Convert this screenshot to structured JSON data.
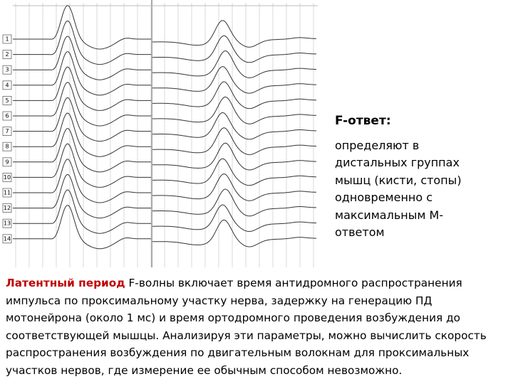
{
  "figure": {
    "trace_labels": [
      "1",
      "2",
      "3",
      "4",
      "5",
      "6",
      "7",
      "8",
      "9",
      "10",
      "11",
      "12",
      "13",
      "14"
    ]
  },
  "aside": {
    "title": "F-ответ:",
    "lines": [
      "определяют в",
      "дистальных группах",
      "мышц (кисти, стопы)",
      "одновременно с",
      "максимальным М-",
      "ответом"
    ]
  },
  "paragraph": {
    "lead": "Латентный период",
    "lines": [
      "F-волны включает время антидромного распространения",
      "импульса по проксимальному участку нерва, задержку на генерацию ПД",
      "мотонейрона (около 1 мс) и время ортодромного проведения возбуждения до",
      "соответствующей мышцы. Анализируя эти параметры, можно вычислить скорость",
      "распространения возбуждения по двигательным волокнам для проксимальных",
      "участков нервов, где измерение ее обычным способом невозможно."
    ]
  }
}
